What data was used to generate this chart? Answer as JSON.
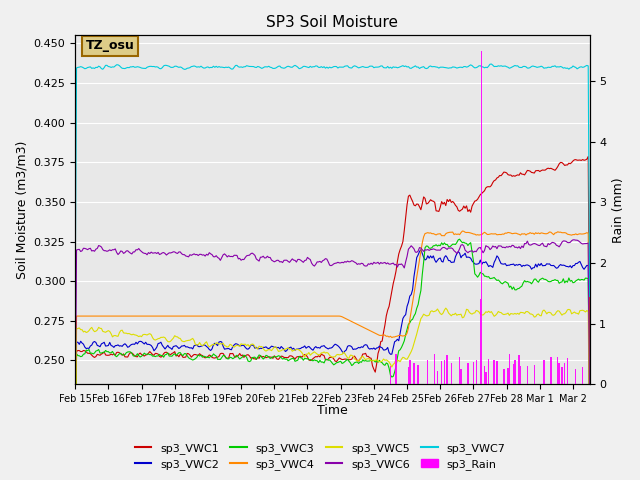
{
  "title": "SP3 Soil Moisture",
  "ylabel_left": "Soil Moisture (m3/m3)",
  "ylabel_right": "Rain (mm)",
  "xlabel": "Time",
  "ylim_left": [
    0.235,
    0.455
  ],
  "ylim_right": [
    0.0,
    5.75
  ],
  "colors": {
    "sp3_VWC1": "#cc0000",
    "sp3_VWC2": "#0000cc",
    "sp3_VWC3": "#00cc00",
    "sp3_VWC4": "#ff8800",
    "sp3_VWC5": "#dddd00",
    "sp3_VWC6": "#8800aa",
    "sp3_VWC7": "#00ccdd",
    "sp3_Rain": "#ff00ff"
  },
  "background_color": "#e8e8e8",
  "grid_color": "#ffffff",
  "tz_label": "TZ_osu",
  "tz_bg": "#ddcc88",
  "tz_border": "#996600"
}
